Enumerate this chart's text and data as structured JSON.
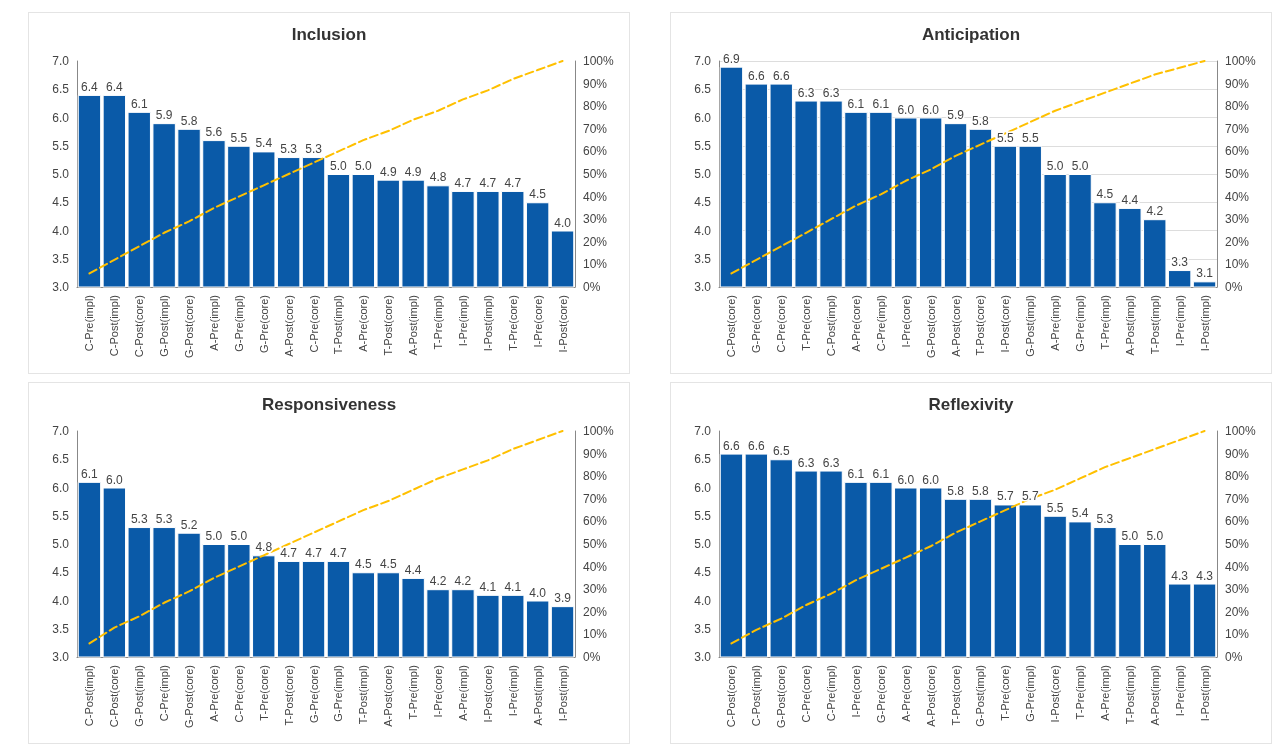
{
  "chart_data": [
    {
      "type": "bar",
      "title": "Inclusion",
      "categories": [
        "C-Pre(impl)",
        "C-Post(impl)",
        "C-Post(core)",
        "G-Post(impl)",
        "G-Post(core)",
        "A-Pre(impl)",
        "G-Pre(impl)",
        "G-Pre(core)",
        "A-Post(core)",
        "C-Pre(core)",
        "T-Post(impl)",
        "A-Pre(core)",
        "T-Post(core)",
        "A-Post(impl)",
        "T-Pre(impl)",
        "I-Pre(impl)",
        "I-Post(impl)",
        "T-Pre(core)",
        "I-Pre(core)",
        "I-Post(core)"
      ],
      "series": [
        {
          "color": "#0a5aa8",
          "values": [
            6.4,
            6.4,
            6.1,
            5.9,
            5.8,
            5.6,
            5.5,
            5.4,
            5.3,
            5.3,
            5.0,
            5.0,
            4.9,
            4.9,
            4.8,
            4.7,
            4.7,
            4.7,
            4.5,
            4.0
          ],
          "value_labels": [
            "6.4",
            "6.4",
            "6.1",
            "5.9",
            "5.8",
            "5.6",
            "5.5",
            "5.4",
            "5.3",
            "5.3",
            "5.0",
            "5.0",
            "4.9",
            "4.9",
            "4.8",
            "4.7",
            "4.7",
            "4.7",
            "4.5",
            "4.0"
          ]
        },
        {
          "type": "line",
          "axis": "y2",
          "color": "#ffc000",
          "line_style": "dashed",
          "values": [
            6,
            12,
            18,
            24,
            29,
            35,
            40,
            45,
            50,
            55,
            60,
            65,
            69,
            74,
            78,
            83,
            87,
            92,
            96,
            100
          ]
        }
      ],
      "ylim": [
        3,
        7
      ],
      "yticks": [
        {
          "value": 3,
          "label": "3.0"
        },
        {
          "value": 3.5,
          "label": "3.5"
        },
        {
          "value": 4,
          "label": "4.0"
        },
        {
          "value": 4.5,
          "label": "4.5"
        },
        {
          "value": 5,
          "label": "5.0"
        },
        {
          "value": 5.5,
          "label": "5.5"
        },
        {
          "value": 6,
          "label": "6.0"
        },
        {
          "value": 6.5,
          "label": "6.5"
        },
        {
          "value": 7,
          "label": "7.0"
        }
      ],
      "y2lim": [
        0,
        100
      ],
      "y2ticks": [
        {
          "value": 0,
          "label": "0%"
        },
        {
          "value": 10,
          "label": "10%"
        },
        {
          "value": 20,
          "label": "20%"
        },
        {
          "value": 30,
          "label": "30%"
        },
        {
          "value": 40,
          "label": "40%"
        },
        {
          "value": 50,
          "label": "50%"
        },
        {
          "value": 60,
          "label": "60%"
        },
        {
          "value": 70,
          "label": "70%"
        },
        {
          "value": 80,
          "label": "80%"
        },
        {
          "value": 90,
          "label": "90%"
        },
        {
          "value": 100,
          "label": "100%"
        }
      ],
      "marker": "none",
      "grid": false
    },
    {
      "type": "bar",
      "title": "Anticipation",
      "categories": [
        "C-Post(core)",
        "G-Pre(core)",
        "C-Pre(core)",
        "T-Pre(core)",
        "C-Post(impl)",
        "A-Pre(core)",
        "C-Pre(impl)",
        "I-Pre(core)",
        "G-Post(core)",
        "A-Post(core)",
        "T-Post(core)",
        "I-Post(core)",
        "G-Post(impl)",
        "A-Pre(impl)",
        "G-Pre(impl)",
        "T-Pre(impl)",
        "A-Post(impl)",
        "T-Post(impl)",
        "I-Pre(impl)",
        "I-Post(impl)"
      ],
      "series": [
        {
          "color": "#0a5aa8",
          "values": [
            6.9,
            6.6,
            6.6,
            6.3,
            6.3,
            6.1,
            6.1,
            6.0,
            6.0,
            5.9,
            5.8,
            5.5,
            5.5,
            5.0,
            5.0,
            4.5,
            4.4,
            4.2,
            3.3,
            3.1
          ],
          "value_labels": [
            "6.9",
            "6.6",
            "6.6",
            "6.3",
            "6.3",
            "6.1",
            "6.1",
            "6.0",
            "6.0",
            "5.9",
            "5.8",
            "5.5",
            "5.5",
            "5.0",
            "5.0",
            "4.5",
            "4.4",
            "4.2",
            "3.3",
            "3.1"
          ]
        },
        {
          "type": "line",
          "axis": "y2",
          "color": "#ffc000",
          "line_style": "dashed",
          "values": [
            6,
            12,
            18,
            24,
            30,
            36,
            41,
            47,
            52,
            58,
            63,
            68,
            73,
            78,
            82,
            86,
            90,
            94,
            97,
            100
          ]
        }
      ],
      "ylim": [
        3,
        7
      ],
      "yticks": [
        {
          "value": 3,
          "label": "3.0"
        },
        {
          "value": 3.5,
          "label": "3.5"
        },
        {
          "value": 4,
          "label": "4.0"
        },
        {
          "value": 4.5,
          "label": "4.5"
        },
        {
          "value": 5,
          "label": "5.0"
        },
        {
          "value": 5.5,
          "label": "5.5"
        },
        {
          "value": 6,
          "label": "6.0"
        },
        {
          "value": 6.5,
          "label": "6.5"
        },
        {
          "value": 7,
          "label": "7.0"
        }
      ],
      "y2lim": [
        0,
        100
      ],
      "y2ticks": [
        {
          "value": 0,
          "label": "0%"
        },
        {
          "value": 10,
          "label": "10%"
        },
        {
          "value": 20,
          "label": "20%"
        },
        {
          "value": 30,
          "label": "30%"
        },
        {
          "value": 40,
          "label": "40%"
        },
        {
          "value": 50,
          "label": "50%"
        },
        {
          "value": 60,
          "label": "60%"
        },
        {
          "value": 70,
          "label": "70%"
        },
        {
          "value": 80,
          "label": "80%"
        },
        {
          "value": 90,
          "label": "90%"
        },
        {
          "value": 100,
          "label": "100%"
        }
      ],
      "marker": "none",
      "grid": "y"
    },
    {
      "type": "bar",
      "title": "Responsiveness",
      "categories": [
        "C-Post(impl)",
        "C-Post(core)",
        "G-Post(impl)",
        "C-Pre(impl)",
        "G-Post(core)",
        "A-Pre(core)",
        "C-Pre(core)",
        "T-Pre(core)",
        "T-Post(core)",
        "G-Pre(core)",
        "G-Pre(impl)",
        "T-Post(impl)",
        "A-Post(core)",
        "T-Pre(impl)",
        "I-Pre(core)",
        "A-Pre(impl)",
        "I-Post(core)",
        "I-Pre(impl)",
        "A-Post(impl)",
        "I-Post(impl)"
      ],
      "series": [
        {
          "color": "#0a5aa8",
          "values": [
            6.1,
            6.0,
            5.3,
            5.3,
            5.2,
            5.0,
            5.0,
            4.8,
            4.7,
            4.7,
            4.7,
            4.5,
            4.5,
            4.4,
            4.2,
            4.2,
            4.1,
            4.1,
            4.0,
            3.9
          ],
          "value_labels": [
            "6.1",
            "6.0",
            "5.3",
            "5.3",
            "5.2",
            "5.0",
            "5.0",
            "4.8",
            "4.7",
            "4.7",
            "4.7",
            "4.5",
            "4.5",
            "4.4",
            "4.2",
            "4.2",
            "4.1",
            "4.1",
            "4.0",
            "3.9"
          ]
        },
        {
          "type": "line",
          "axis": "y2",
          "color": "#ffc000",
          "line_style": "dashed",
          "values": [
            6,
            13,
            18,
            24,
            29,
            35,
            40,
            45,
            50,
            55,
            60,
            65,
            69,
            74,
            79,
            83,
            87,
            92,
            96,
            100
          ]
        }
      ],
      "ylim": [
        3,
        7
      ],
      "yticks": [
        {
          "value": 3,
          "label": "3.0"
        },
        {
          "value": 3.5,
          "label": "3.5"
        },
        {
          "value": 4,
          "label": "4.0"
        },
        {
          "value": 4.5,
          "label": "4.5"
        },
        {
          "value": 5,
          "label": "5.0"
        },
        {
          "value": 5.5,
          "label": "5.5"
        },
        {
          "value": 6,
          "label": "6.0"
        },
        {
          "value": 6.5,
          "label": "6.5"
        },
        {
          "value": 7,
          "label": "7.0"
        }
      ],
      "y2lim": [
        0,
        100
      ],
      "y2ticks": [
        {
          "value": 0,
          "label": "0%"
        },
        {
          "value": 10,
          "label": "10%"
        },
        {
          "value": 20,
          "label": "20%"
        },
        {
          "value": 30,
          "label": "30%"
        },
        {
          "value": 40,
          "label": "40%"
        },
        {
          "value": 50,
          "label": "50%"
        },
        {
          "value": 60,
          "label": "60%"
        },
        {
          "value": 70,
          "label": "70%"
        },
        {
          "value": 80,
          "label": "80%"
        },
        {
          "value": 90,
          "label": "90%"
        },
        {
          "value": 100,
          "label": "100%"
        }
      ],
      "marker": "none",
      "grid": false
    },
    {
      "type": "bar",
      "title": "Reflexivity",
      "categories": [
        "C-Post(core)",
        "C-Post(impl)",
        "G-Post(core)",
        "C-Pre(core)",
        "C-Pre(impl)",
        "I-Pre(core)",
        "G-Pre(core)",
        "A-Pre(core)",
        "A-Post(core)",
        "T-Post(core)",
        "G-Post(impl)",
        "T-Pre(core)",
        "G-Pre(impl)",
        "I-Post(core)",
        "T-Pre(impl)",
        "A-Pre(impl)",
        "T-Post(impl)",
        "A-Post(impl)",
        "I-Pre(impl)",
        "I-Post(impl)"
      ],
      "series": [
        {
          "color": "#0a5aa8",
          "values": [
            6.6,
            6.6,
            6.5,
            6.3,
            6.3,
            6.1,
            6.1,
            6.0,
            6.0,
            5.8,
            5.8,
            5.7,
            5.7,
            5.5,
            5.4,
            5.3,
            5.0,
            5.0,
            4.3,
            4.3
          ],
          "value_labels": [
            "6.6",
            "6.6",
            "6.5",
            "6.3",
            "6.3",
            "6.1",
            "6.1",
            "6.0",
            "6.0",
            "5.8",
            "5.8",
            "5.7",
            "5.7",
            "5.5",
            "5.4",
            "5.3",
            "5.0",
            "5.0",
            "4.3",
            "4.3"
          ]
        },
        {
          "type": "line",
          "axis": "y2",
          "color": "#ffc000",
          "line_style": "dashed",
          "values": [
            6,
            12,
            17,
            23,
            28,
            34,
            39,
            44,
            49,
            55,
            60,
            65,
            70,
            74,
            79,
            84,
            88,
            92,
            96,
            100
          ]
        }
      ],
      "ylim": [
        3,
        7
      ],
      "yticks": [
        {
          "value": 3,
          "label": "3.0"
        },
        {
          "value": 3.5,
          "label": "3.5"
        },
        {
          "value": 4,
          "label": "4.0"
        },
        {
          "value": 4.5,
          "label": "4.5"
        },
        {
          "value": 5,
          "label": "5.0"
        },
        {
          "value": 5.5,
          "label": "5.5"
        },
        {
          "value": 6,
          "label": "6.0"
        },
        {
          "value": 6.5,
          "label": "6.5"
        },
        {
          "value": 7,
          "label": "7.0"
        }
      ],
      "y2lim": [
        0,
        100
      ],
      "y2ticks": [
        {
          "value": 0,
          "label": "0%"
        },
        {
          "value": 10,
          "label": "10%"
        },
        {
          "value": 20,
          "label": "20%"
        },
        {
          "value": 30,
          "label": "30%"
        },
        {
          "value": 40,
          "label": "40%"
        },
        {
          "value": 50,
          "label": "50%"
        },
        {
          "value": 60,
          "label": "60%"
        },
        {
          "value": 70,
          "label": "70%"
        },
        {
          "value": 80,
          "label": "80%"
        },
        {
          "value": 90,
          "label": "90%"
        },
        {
          "value": 100,
          "label": "100%"
        }
      ],
      "marker": "none",
      "grid": false
    }
  ]
}
